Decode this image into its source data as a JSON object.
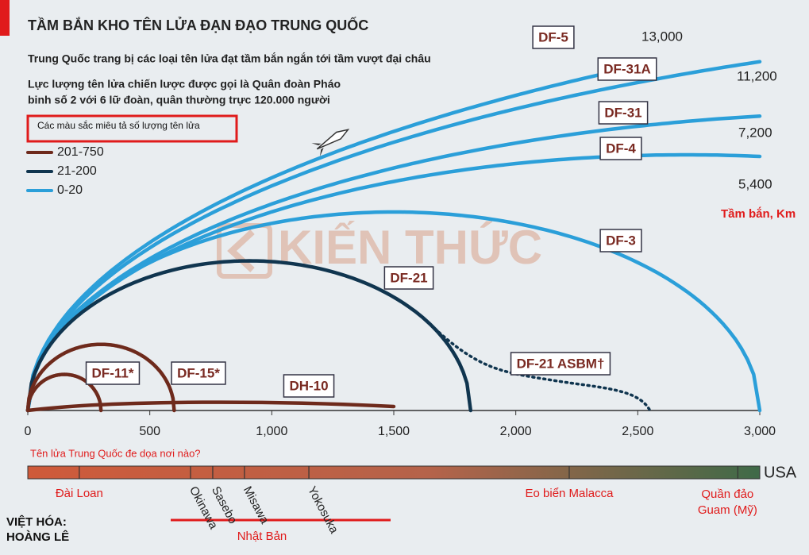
{
  "chart_data": {
    "type": "trajectory",
    "title": "TẦM BẮN KHO TÊN LỬA ĐẠN ĐẠO TRUNG QUỐC",
    "subtitle": "Trung Quốc trang bị các loại tên lửa đạt tầm bắn ngắn tới tầm vượt đại châu",
    "notes": [
      "Lực lượng tên lửa chiến lược được gọi là Quân đoàn Pháo",
      "binh số 2 với 6 lữ đoàn, quân thường trực 120.000 người"
    ],
    "legend_title": "Các màu sắc miêu tả số lượng tên lửa",
    "legend": [
      {
        "name": "201-750",
        "color": "#6e2a1c"
      },
      {
        "name": "21-200",
        "color": "#10354f"
      },
      {
        "name": "0-20",
        "color": "#2b9fd9"
      }
    ],
    "y_label": "Tầm bắn, Km",
    "xlim": [
      0,
      3000
    ],
    "xticks": [
      0,
      500,
      {
        "value": 1000,
        "label": "1,000"
      },
      {
        "value": 1500,
        "label": "1,500"
      },
      {
        "value": 2000,
        "label": "2,000"
      },
      {
        "value": 2500,
        "label": "2,500"
      },
      {
        "value": 3000,
        "label": "3,000"
      }
    ],
    "missiles": {
      "names": [
        "DF-5",
        "DF-31A",
        "DF-31",
        "DF-4",
        "DF-3",
        "DF-21",
        "DF-21 ASBM†",
        "DF-15*",
        "DF-11*",
        "DH-10"
      ],
      "values": [
        13000,
        11200,
        7200,
        5400,
        3000,
        1815,
        2550,
        600,
        300,
        1500
      ],
      "value_labels": [
        "13,000",
        "11,200",
        "7,200",
        "5,400",
        null,
        null,
        null,
        null,
        null,
        null
      ],
      "colors": [
        "#2b9fd9",
        "#2b9fd9",
        "#2b9fd9",
        "#2b9fd9",
        "#2b9fd9",
        "#10354f",
        "#10354f",
        "#6e2a1c",
        "#6e2a1c",
        "#6e2a1c"
      ],
      "trajectories": [
        "ballistic",
        "ballistic",
        "ballistic",
        "ballistic",
        "ballistic",
        "ballistic",
        "dotted",
        "ballistic",
        "ballistic",
        "flat"
      ]
    },
    "threat_title": "Tên lửa Trung Quốc đe dọa nơi nào?",
    "threat_end": "USA",
    "places": [
      {
        "name": "Đài Loan",
        "distance": 211
      },
      {
        "name": "Okinawa",
        "distance": 667
      },
      {
        "name": "Sasebo",
        "distance": 758
      },
      {
        "name": "Misawa",
        "distance": 888
      },
      {
        "name": "Yokosuka",
        "distance": 1152
      },
      {
        "name": "Eo biển Malacca",
        "distance": 2219
      },
      {
        "name": "Quần đảo Guam (Mỹ)",
        "distance": 2910
      }
    ],
    "group_label": "Nhật Bản",
    "watermark": "KIẾN THỨC",
    "credit": [
      "VIỆT HÓA:",
      "HOÀNG LÊ"
    ]
  }
}
